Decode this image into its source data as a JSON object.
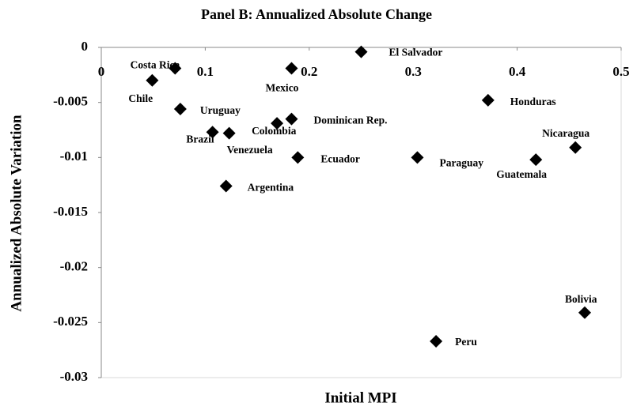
{
  "chart_data": {
    "type": "scatter",
    "title": "Panel B: Annualized Absolute Change",
    "x_label": "Initial MPI",
    "y_label": "Annualized Absolute Variation",
    "labels": [
      "Costa Rica",
      "Chile",
      "Uruguay",
      "Brazil",
      "Venezuela",
      "Argentina",
      "Mexico",
      "Colombia",
      "Dominican Rep.",
      "Ecuador",
      "El Salvador",
      "Paraguay",
      "Peru",
      "Honduras",
      "Guatemala",
      "Nicaragua",
      "Bolivia"
    ],
    "x": [
      0.071,
      0.049,
      0.076,
      0.107,
      0.123,
      0.12,
      0.183,
      0.169,
      0.183,
      0.189,
      0.25,
      0.304,
      0.322,
      0.372,
      0.418,
      0.456,
      0.465
    ],
    "values": [
      -0.0019,
      -0.003,
      -0.0056,
      -0.0077,
      -0.0078,
      -0.0126,
      -0.0019,
      -0.0069,
      -0.0065,
      -0.01,
      -0.0004,
      -0.01,
      -0.0267,
      -0.0048,
      -0.0102,
      -0.0091,
      -0.0241
    ],
    "color": "#000000",
    "xlim": [
      0,
      0.5
    ],
    "xticks": [
      0,
      0.1,
      0.2,
      0.3,
      0.4,
      0.5
    ],
    "ylim": [
      -0.03,
      0
    ],
    "yticks": [
      0,
      -0.005,
      -0.01,
      -0.015,
      -0.02,
      -0.025,
      -0.03
    ],
    "grid": false
  }
}
